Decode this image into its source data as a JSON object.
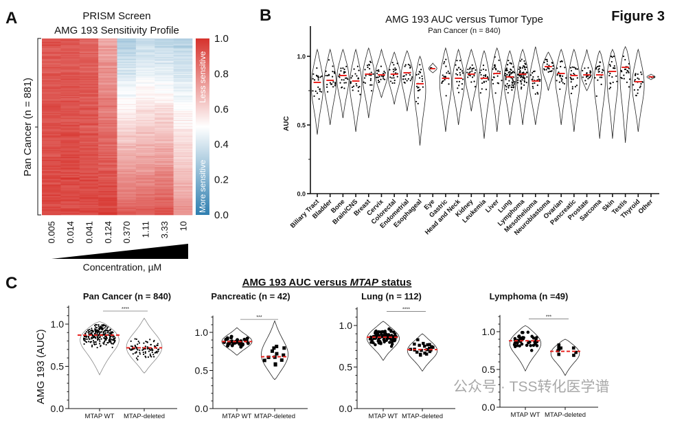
{
  "figure_label": "Figure 3",
  "watermark": "公众号 · TSS转化医学谱",
  "chart_data": [
    {
      "panel": "A",
      "type": "heatmap",
      "title": "PRISM Screen",
      "subtitle": "AMG 193 Sensitivity Profile",
      "ylabel": "Pan Cancer (n = 881)",
      "xlabel": "Concentration, µM",
      "categories": [
        "0.005",
        "0.014",
        "0.041",
        "0.124",
        "0.370",
        "1.11",
        "3.33",
        "10"
      ],
      "colorbar": {
        "range": [
          0.0,
          1.0
        ],
        "ticks": [
          "1.0",
          "0.8",
          "0.6",
          "0.4",
          "0.2",
          "0.0"
        ],
        "top_label": "Less sensitive",
        "bottom_label": "More sensitive",
        "colors": {
          "high": "#d6322c",
          "mid": "#ffffff",
          "low": "#2f7fb0"
        }
      }
    },
    {
      "panel": "B",
      "type": "violin",
      "title": "AMG 193 AUC versus Tumor Type",
      "subtitle": "Pan Cancer (n = 840)",
      "ylabel": "AUC",
      "ylim": [
        0.0,
        1.0
      ],
      "yticks": [
        "0.0",
        "0.5",
        "1.0"
      ],
      "median_color": "#e8231f",
      "categories": [
        "Biliary Tract",
        "Bladder",
        "Bone",
        "Brain/CNS",
        "Breast",
        "Cervix",
        "Colorectal",
        "Endometrial",
        "Esophageal",
        "Eye",
        "Gastric",
        "Head and Neck",
        "Kidney",
        "Leukemia",
        "Liver",
        "Lung",
        "Lymphoma",
        "Mesothelioma",
        "Neuroblastoma",
        "Ovarian",
        "Pancreatic",
        "Prostate",
        "Sarcoma",
        "Skin",
        "Testis",
        "Thyroid",
        "Other"
      ],
      "medians": [
        0.81,
        0.825,
        0.86,
        0.82,
        0.87,
        0.865,
        0.87,
        0.88,
        0.8,
        0.91,
        0.84,
        0.84,
        0.87,
        0.84,
        0.875,
        0.85,
        0.87,
        0.82,
        0.925,
        0.875,
        0.86,
        0.865,
        0.865,
        0.89,
        0.92,
        0.815,
        0.85
      ],
      "ranges": [
        [
          0.43,
          1.05
        ],
        [
          0.5,
          1.05
        ],
        [
          0.55,
          1.05
        ],
        [
          0.45,
          1.05
        ],
        [
          0.55,
          1.06
        ],
        [
          0.7,
          1.05
        ],
        [
          0.65,
          1.03
        ],
        [
          0.6,
          1.04
        ],
        [
          0.35,
          1.0
        ],
        [
          0.88,
          0.95
        ],
        [
          0.45,
          1.06
        ],
        [
          0.5,
          1.05
        ],
        [
          0.6,
          1.05
        ],
        [
          0.4,
          1.04
        ],
        [
          0.45,
          1.06
        ],
        [
          0.5,
          1.04
        ],
        [
          0.5,
          1.05
        ],
        [
          0.5,
          1.07
        ],
        [
          0.75,
          1.03
        ],
        [
          0.5,
          1.05
        ],
        [
          0.45,
          1.05
        ],
        [
          0.75,
          1.05
        ],
        [
          0.4,
          1.04
        ],
        [
          0.4,
          1.05
        ],
        [
          0.37,
          1.07
        ],
        [
          0.45,
          1.05
        ],
        [
          0.83,
          0.87
        ]
      ]
    },
    {
      "panel": "C",
      "type": "violin",
      "title": "AMG 193 AUC versus MTAP status",
      "title_plain": "AMG 193 AUC versus ",
      "title_italic": "MTAP",
      "title_tail": " status",
      "ylabel": "AMG 193 (AUC)",
      "ylim": [
        0.0,
        1.0
      ],
      "yticks": [
        "0.0",
        "0.5",
        "1.0"
      ],
      "categories": [
        "MTAP WT",
        "MTAP-deleted"
      ],
      "subplots": [
        {
          "title": "Pan Cancer (n = 840)",
          "significance": "****",
          "medians": [
            0.87,
            0.72
          ],
          "ranges": [
            [
              0.4,
              1.03
            ],
            [
              0.42,
              1.07
            ]
          ]
        },
        {
          "title": "Pancreatic (n = 42)",
          "significance": "***",
          "medians": [
            0.88,
            0.68
          ],
          "ranges": [
            [
              0.7,
              1.06
            ],
            [
              0.38,
              1.15
            ]
          ]
        },
        {
          "title": "Lung (n = 112)",
          "significance": "****",
          "medians": [
            0.86,
            0.71
          ],
          "ranges": [
            [
              0.58,
              1.05
            ],
            [
              0.45,
              0.9
            ]
          ]
        },
        {
          "title": "Lymphoma (n =49)",
          "significance": "***",
          "medians": [
            0.88,
            0.74
          ],
          "ranges": [
            [
              0.48,
              1.08
            ],
            [
              0.42,
              0.9
            ]
          ]
        }
      ]
    }
  ],
  "panel_labels": {
    "a": "A",
    "b": "B",
    "c": "C"
  }
}
